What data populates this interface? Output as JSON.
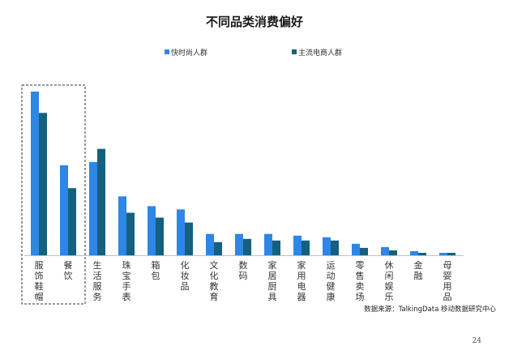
{
  "chart_data": {
    "type": "bar",
    "title": "不同品类消费偏好",
    "xlabel": "",
    "ylabel": "",
    "ylim": [
      0,
      100
    ],
    "grid": false,
    "legend": "top-center",
    "categories": [
      "服饰鞋帽",
      "餐饮",
      "生活服务",
      "珠宝手表",
      "箱包",
      "化妆品",
      "文化教育",
      "数码",
      "家居厨具",
      "家用电器",
      "运动健康",
      "零售卖场",
      "休闲娱乐",
      "金融",
      "母婴用品"
    ],
    "series": [
      {
        "name": "快时尚人群",
        "color": "#2e86e6",
        "values": [
          100,
          55,
          57,
          36,
          30,
          28,
          13,
          13,
          13,
          12,
          11,
          7,
          5,
          2.5,
          1.5
        ]
      },
      {
        "name": "主流电商人群",
        "color": "#14607e",
        "values": [
          87,
          41,
          65,
          26,
          23,
          20,
          8,
          10,
          9,
          9,
          9,
          4.5,
          3,
          1.5,
          1.5
        ]
      }
    ],
    "highlight": {
      "categories": [
        "服饰鞋帽",
        "餐饮"
      ],
      "style": "dashed-box"
    }
  },
  "source_text": "数据来源：TalkingData 移动数据研究中心",
  "page_number": "24"
}
